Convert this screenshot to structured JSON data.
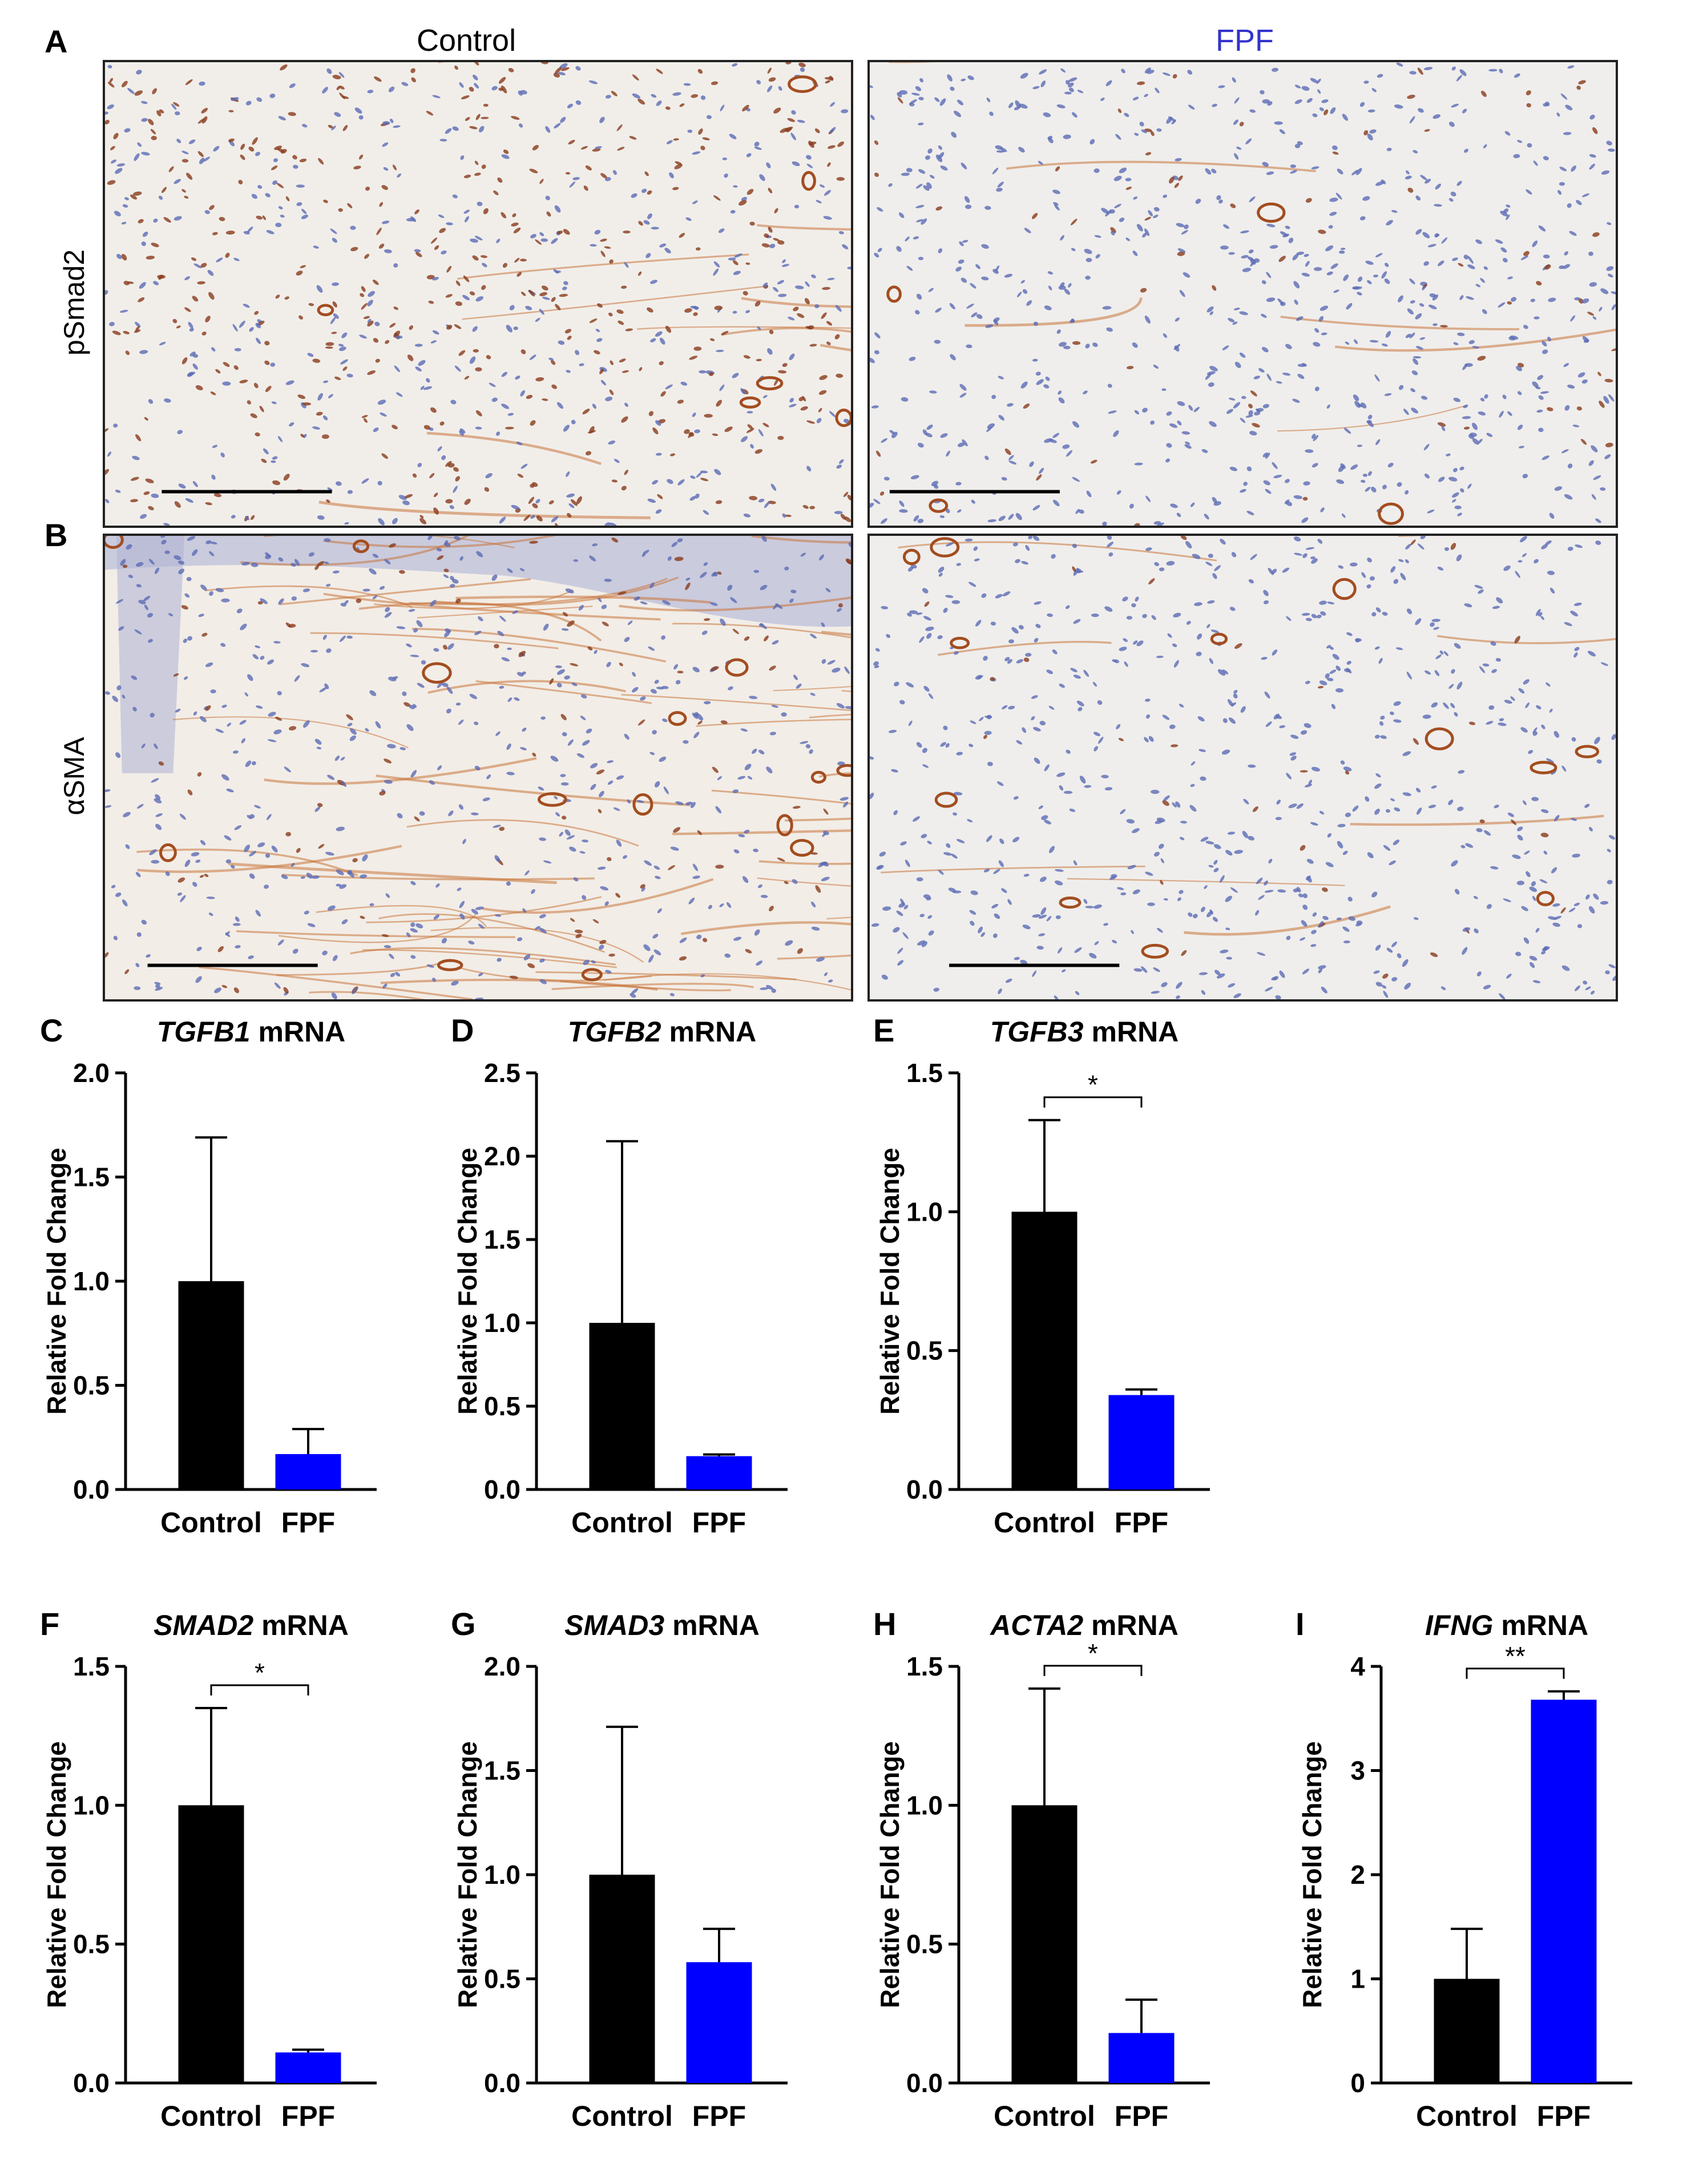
{
  "colors": {
    "control": "#000000",
    "fpf": "#0000ff",
    "fpf_label": "#3333cc"
  },
  "header": {
    "control": "Control",
    "fpf": "FPF"
  },
  "panels": {
    "A": {
      "letter": "A",
      "row_label": "pSmad2"
    },
    "B": {
      "letter": "B",
      "row_label": "αSMA"
    }
  },
  "micrographs": [
    {
      "stain": "pSmad2",
      "group": "Control",
      "image": "brown-nuclei-dense"
    },
    {
      "stain": "pSmad2",
      "group": "FPF",
      "image": "blue-nuclei-few-brown"
    },
    {
      "stain": "αSMA",
      "group": "Control",
      "image": "brown-fibers-dense"
    },
    {
      "stain": "αSMA",
      "group": "FPF",
      "image": "brown-vessels-sparse"
    }
  ],
  "chart_data": [
    {
      "type": "bar",
      "letter": "C",
      "gene": "TGFB1",
      "suffix": " mRNA",
      "ylabel": "Relative Fold Change",
      "categories": [
        "Control",
        "FPF"
      ],
      "values": [
        1.0,
        0.17
      ],
      "errors": [
        0.69,
        0.12
      ],
      "ylim": [
        0,
        2.0
      ],
      "yticks": [
        "0.0",
        "0.5",
        "1.0",
        "1.5",
        "2.0"
      ],
      "sig": ""
    },
    {
      "type": "bar",
      "letter": "D",
      "gene": "TGFB2",
      "suffix": " mRNA",
      "ylabel": "Relative Fold Change",
      "categories": [
        "Control",
        "FPF"
      ],
      "values": [
        1.0,
        0.2
      ],
      "errors": [
        1.09,
        0.01
      ],
      "ylim": [
        0,
        2.5
      ],
      "yticks": [
        "0.0",
        "0.5",
        "1.0",
        "1.5",
        "2.0",
        "2.5"
      ],
      "sig": ""
    },
    {
      "type": "bar",
      "letter": "E",
      "gene": "TGFB3",
      "suffix": " mRNA",
      "ylabel": "Relative Fold Change",
      "categories": [
        "Control",
        "FPF"
      ],
      "values": [
        1.0,
        0.34
      ],
      "errors": [
        0.33,
        0.02
      ],
      "ylim": [
        0,
        1.5
      ],
      "yticks": [
        "0.0",
        "0.5",
        "1.0",
        "1.5"
      ],
      "sig": "*"
    },
    {
      "type": "bar",
      "letter": "F",
      "gene": "SMAD2",
      "suffix": " mRNA",
      "ylabel": "Relative Fold Change",
      "categories": [
        "Control",
        "FPF"
      ],
      "values": [
        1.0,
        0.11
      ],
      "errors": [
        0.35,
        0.01
      ],
      "ylim": [
        0,
        1.5
      ],
      "yticks": [
        "0.0",
        "0.5",
        "1.0",
        "1.5"
      ],
      "sig": "*"
    },
    {
      "type": "bar",
      "letter": "G",
      "gene": "SMAD3",
      "suffix": " mRNA",
      "ylabel": "Relative Fold Change",
      "categories": [
        "Control",
        "FPF"
      ],
      "values": [
        1.0,
        0.58
      ],
      "errors": [
        0.71,
        0.16
      ],
      "ylim": [
        0,
        2.0
      ],
      "yticks": [
        "0.0",
        "0.5",
        "1.0",
        "1.5",
        "2.0"
      ],
      "sig": ""
    },
    {
      "type": "bar",
      "letter": "H",
      "gene": "ACTA2",
      "suffix": " mRNA",
      "ylabel": "Relative Fold Change",
      "categories": [
        "Control",
        "FPF"
      ],
      "values": [
        1.0,
        0.18
      ],
      "errors": [
        0.42,
        0.12
      ],
      "ylim": [
        0,
        1.5
      ],
      "yticks": [
        "0.0",
        "0.5",
        "1.0",
        "1.5"
      ],
      "sig": "*"
    },
    {
      "type": "bar",
      "letter": "I",
      "gene": "IFNG",
      "suffix": " mRNA",
      "ylabel": "Relative Fold Change",
      "categories": [
        "Control",
        "FPF"
      ],
      "values": [
        1.0,
        3.68
      ],
      "errors": [
        0.48,
        0.08
      ],
      "ylim": [
        0,
        4
      ],
      "yticks": [
        "0",
        "1",
        "2",
        "3",
        "4"
      ],
      "sig": "**"
    }
  ]
}
